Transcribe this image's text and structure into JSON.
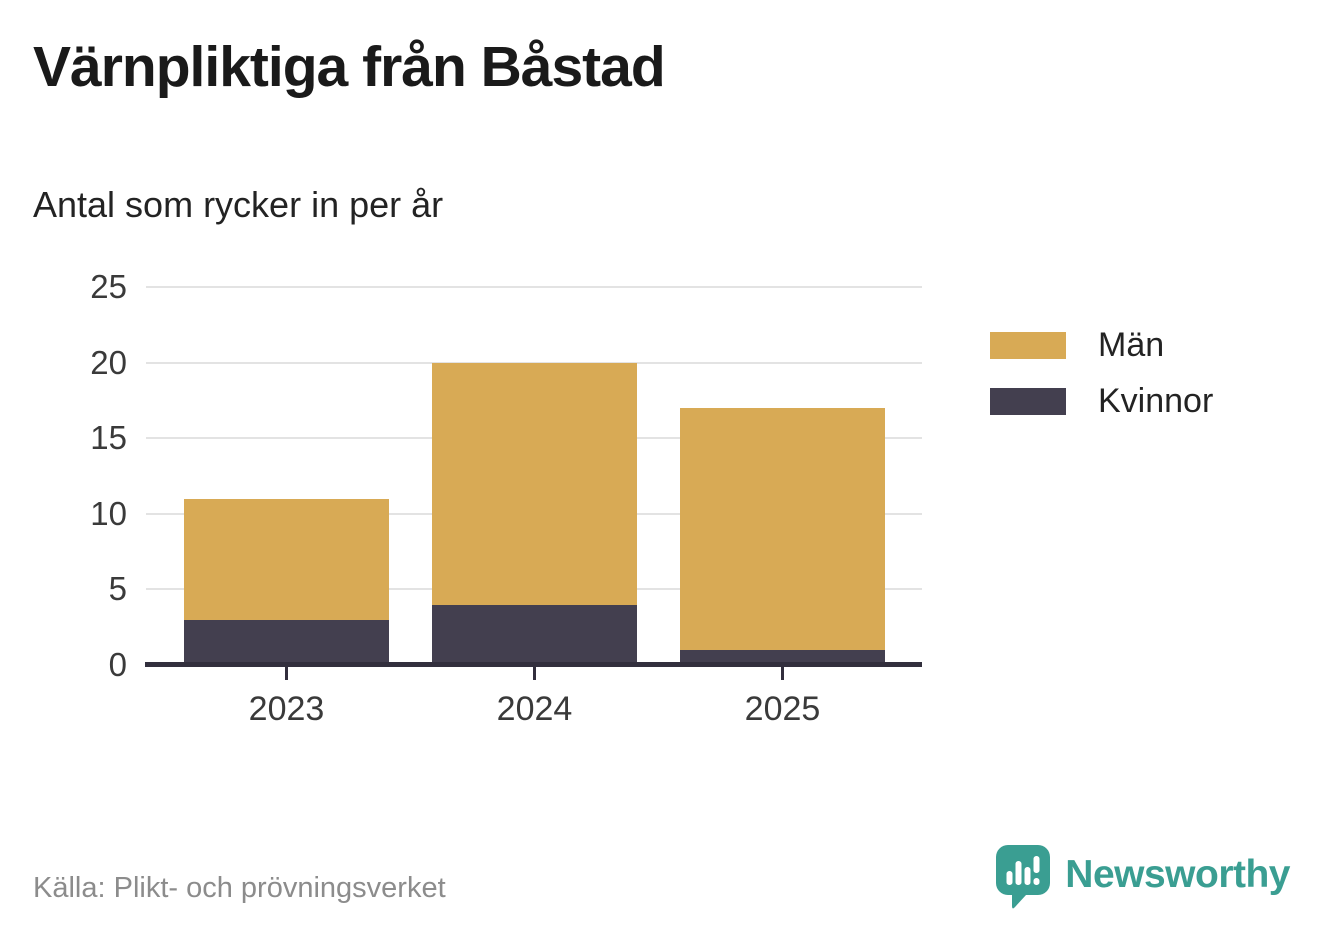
{
  "header": {
    "title": "Värnpliktiga från Båstad",
    "subtitle": "Antal som rycker in per år"
  },
  "footer": {
    "source": "Källa: Plikt- och prövningsverket",
    "brand_name": "Newsworthy",
    "brand_icon": "speech-bubble-bar-chart-icon",
    "brand_color": "#3a9e92"
  },
  "colors": {
    "man": "#d8aa55",
    "kvinnor": "#433f4f",
    "gridline": "#e3e3e3",
    "axis_line": "#322f3d",
    "axis_text": "#3a3a3a",
    "title_text": "#1a1a1a",
    "source_text": "#8c8c8c"
  },
  "chart_data": {
    "type": "bar",
    "stacked": true,
    "title": "Värnpliktiga från Båstad",
    "subtitle": "Antal som rycker in per år",
    "categories": [
      "2023",
      "2024",
      "2025"
    ],
    "series": [
      {
        "name": "Män",
        "color": "#d8aa55",
        "values": [
          8,
          16,
          16
        ]
      },
      {
        "name": "Kvinnor",
        "color": "#433f4f",
        "values": [
          3,
          4,
          1
        ]
      }
    ],
    "stack_bottom_to_top": [
      "Kvinnor",
      "Män"
    ],
    "totals": [
      11,
      20,
      17
    ],
    "xlabel": "",
    "ylabel": "",
    "ylim": [
      0,
      25
    ],
    "yticks": [
      0,
      5,
      10,
      15,
      20,
      25
    ],
    "grid": true,
    "legend_position": "right",
    "source": "Källa: Plikt- och prövningsverket"
  }
}
